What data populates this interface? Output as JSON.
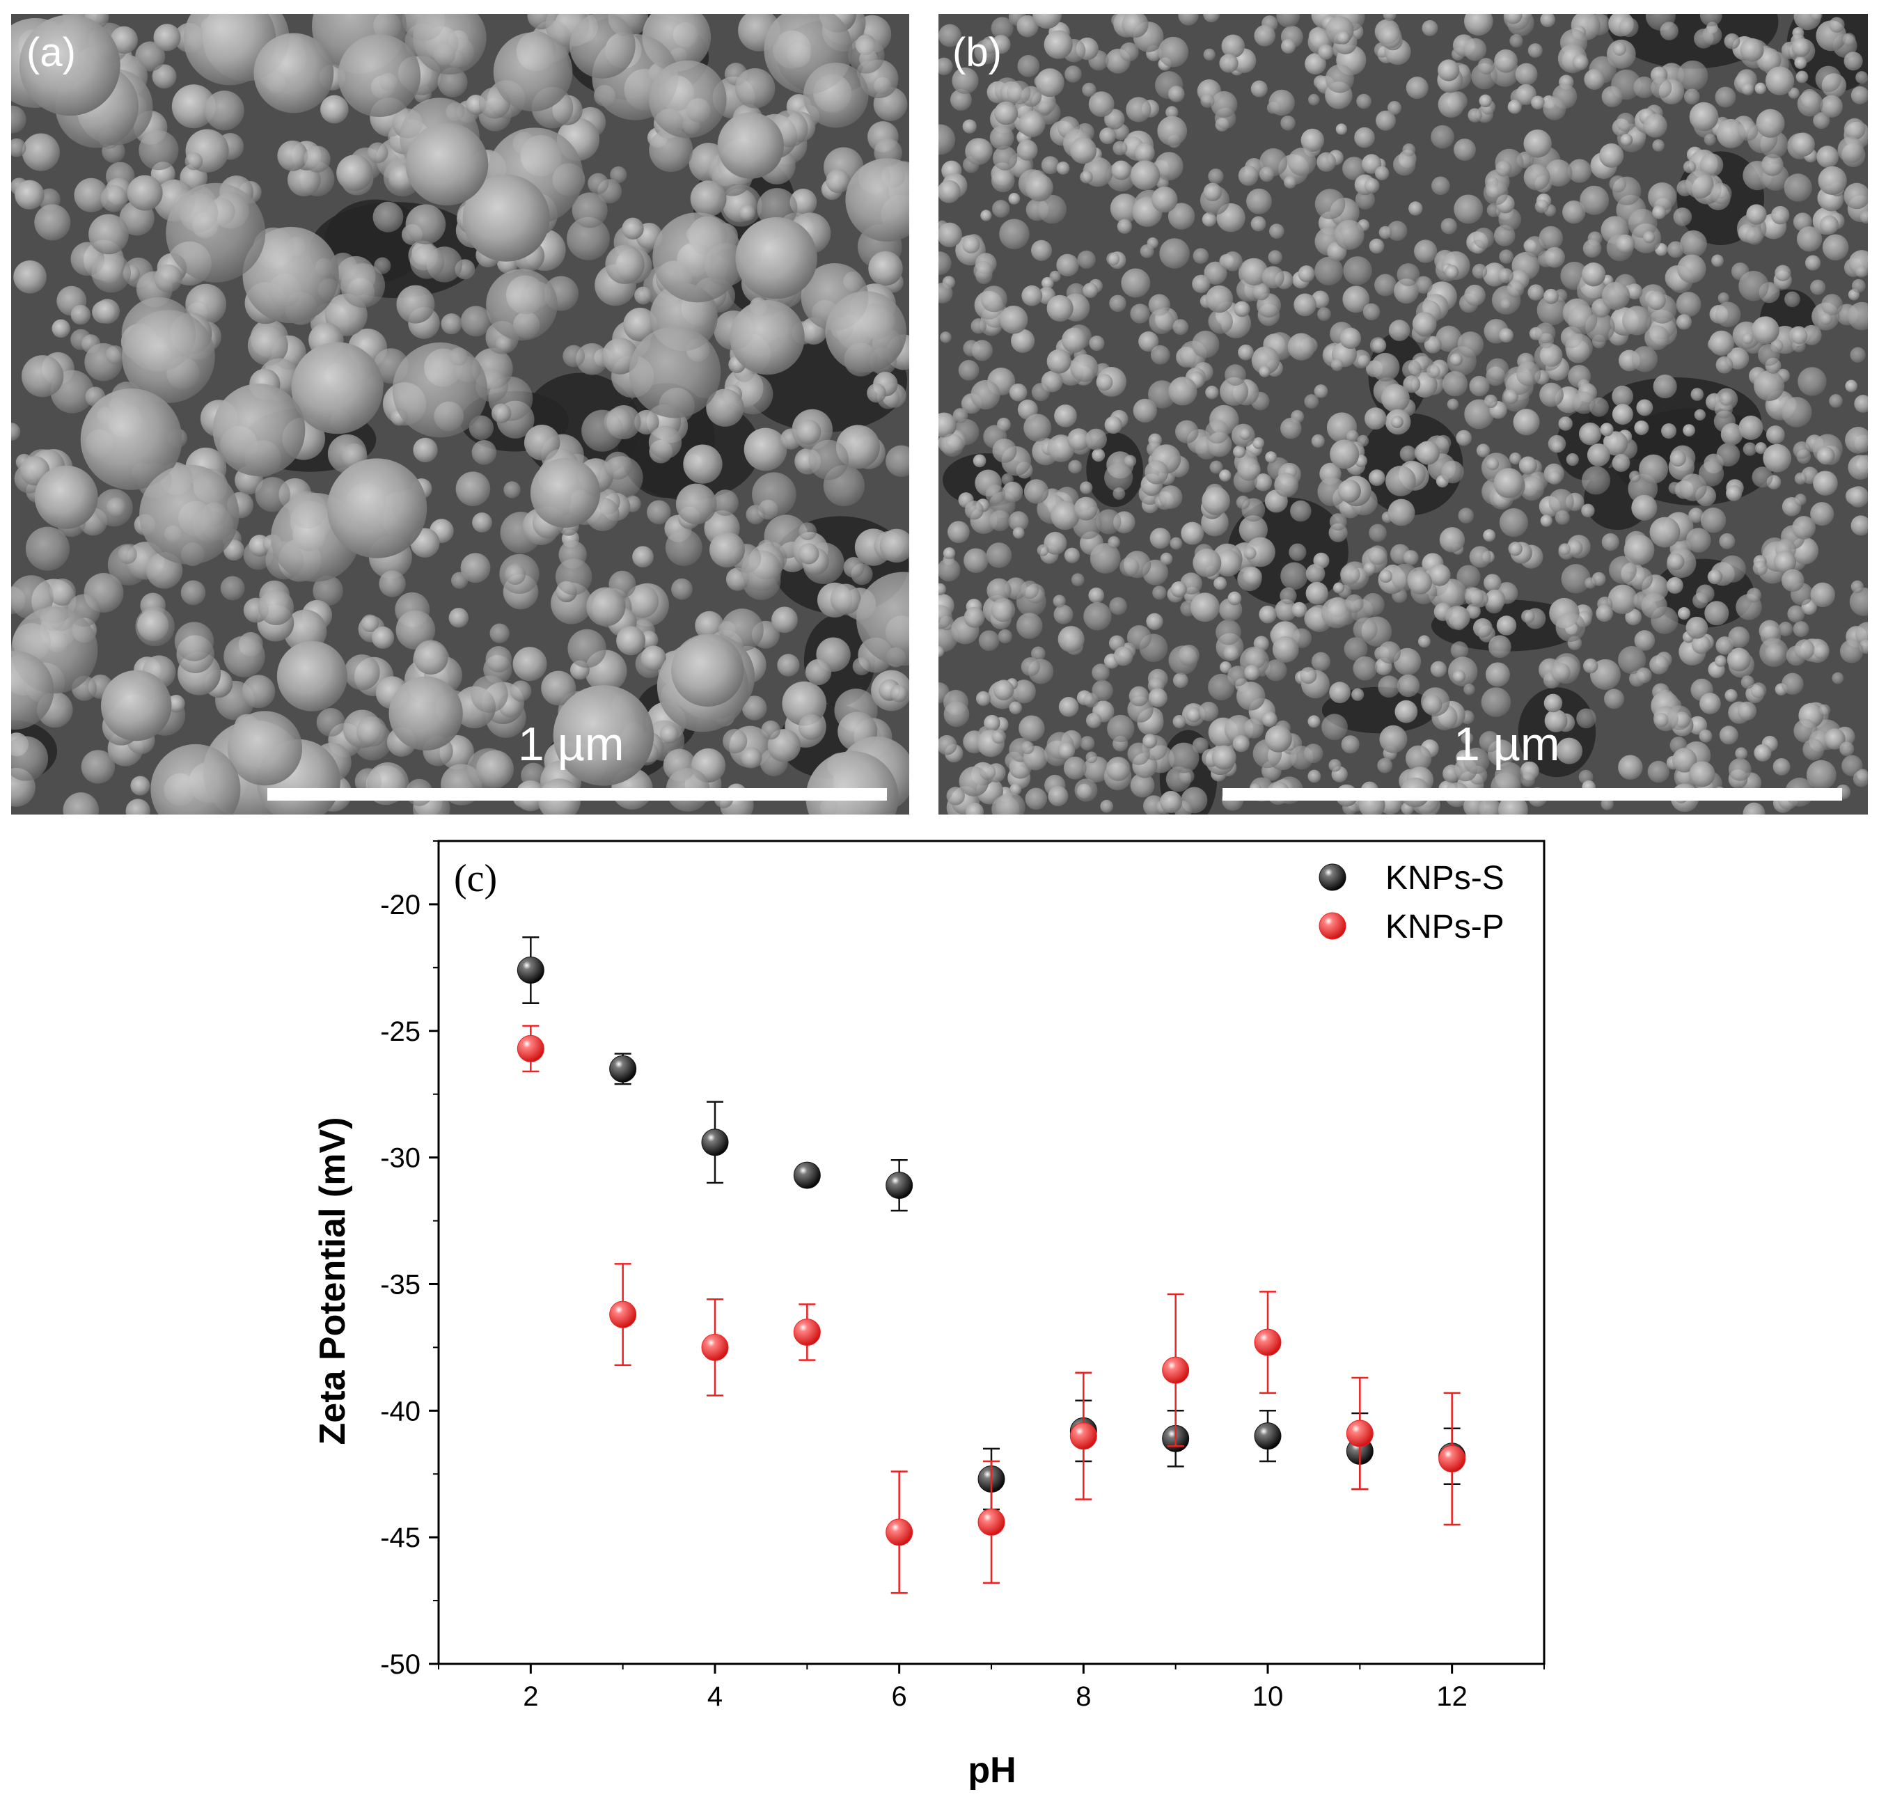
{
  "panels": {
    "a": {
      "label": "(a)",
      "scale_text": "1 µm"
    },
    "b": {
      "label": "(b)",
      "scale_text": "1 µm"
    }
  },
  "chart_data": {
    "type": "scatter",
    "panel_label": "(c)",
    "xlabel": "pH",
    "ylabel": "Zeta Potential (mV)",
    "xlim": [
      1,
      13
    ],
    "ylim": [
      -50,
      -17.5
    ],
    "xticks": [
      2,
      4,
      6,
      8,
      10,
      12
    ],
    "yticks": [
      -50,
      -45,
      -40,
      -35,
      -30,
      -25,
      -20
    ],
    "grid": false,
    "legend_position": "top-right",
    "series": [
      {
        "name": "KNPs-S",
        "color": "#111111",
        "x": [
          2,
          3,
          4,
          5,
          6,
          7,
          8,
          9,
          10,
          11,
          12
        ],
        "y": [
          -22.6,
          -26.5,
          -29.4,
          -30.7,
          -31.1,
          -42.7,
          -40.8,
          -41.1,
          -41.0,
          -41.6,
          -41.8
        ],
        "err": [
          1.3,
          0.6,
          1.6,
          0.4,
          1.0,
          1.2,
          1.2,
          1.1,
          1.0,
          1.5,
          1.1
        ]
      },
      {
        "name": "KNPs-P",
        "color": "#ee2020",
        "x": [
          2,
          3,
          4,
          5,
          6,
          7,
          8,
          9,
          10,
          11,
          12
        ],
        "y": [
          -25.7,
          -36.2,
          -37.5,
          -36.9,
          -44.8,
          -44.4,
          -41.0,
          -38.4,
          -37.3,
          -40.9,
          -41.9
        ],
        "err": [
          0.9,
          2.0,
          1.9,
          1.1,
          2.4,
          2.4,
          2.5,
          3.0,
          2.0,
          2.2,
          2.6
        ]
      }
    ]
  }
}
